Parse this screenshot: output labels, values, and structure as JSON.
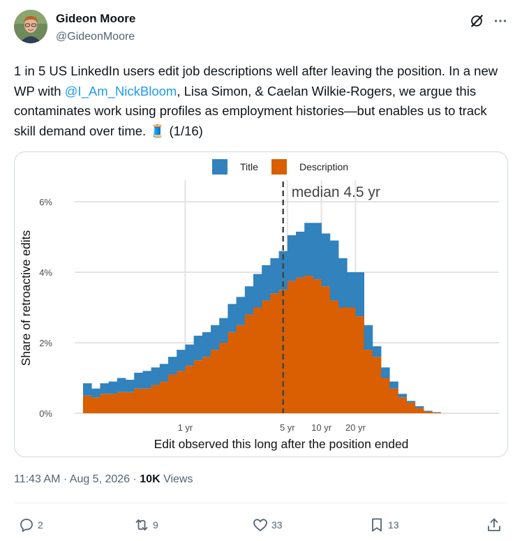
{
  "author": {
    "name": "Gideon Moore",
    "handle": "@GideonMoore",
    "avatar_icon": "profile-photo"
  },
  "tweet": {
    "text_before": "1 in 5 US LinkedIn users edit job descriptions well after leaving the position. In a new WP with ",
    "mention": "@I_Am_NickBloom",
    "text_after": ", Lisa Simon, & Caelan Wilkie-Rogers, we argue this contaminates work using profiles as employment histories—but enables us to track skill demand over time. 🧵 (1/16)"
  },
  "chart_data": {
    "type": "bar",
    "stacked": true,
    "xlabel": "Edit observed this long after the position ended",
    "ylabel": "Share of retroactive edits",
    "ylim": [
      0,
      6.5
    ],
    "y_ticks": [
      "0%",
      "2%",
      "4%",
      "6%"
    ],
    "y_tick_values": [
      0,
      2,
      4,
      6
    ],
    "x_ticks": [
      "1 yr",
      "5 yr",
      "10 yr",
      "20 yr"
    ],
    "x_tick_bins": [
      12,
      24,
      28,
      32
    ],
    "legend_position": "top",
    "annotation": "median 4.5 yr",
    "median_bin": 23.5,
    "series": [
      {
        "name": "Description",
        "color": "#d95f02",
        "values": [
          0.5,
          0.45,
          0.55,
          0.55,
          0.6,
          0.6,
          0.7,
          0.7,
          0.8,
          0.9,
          1.1,
          1.2,
          1.35,
          1.5,
          1.6,
          1.8,
          2.0,
          2.3,
          2.5,
          2.8,
          3.0,
          3.2,
          3.4,
          3.5,
          3.75,
          3.85,
          3.9,
          3.8,
          3.6,
          3.2,
          3.0,
          3.0,
          2.75,
          1.8,
          1.6,
          1.0,
          0.7,
          0.45,
          0.3,
          0.15,
          0.05,
          0.02
        ]
      },
      {
        "name": "Title",
        "color": "#3182bd",
        "values": [
          0.35,
          0.25,
          0.3,
          0.35,
          0.4,
          0.35,
          0.45,
          0.5,
          0.5,
          0.5,
          0.5,
          0.6,
          0.6,
          0.7,
          0.7,
          0.7,
          0.7,
          0.8,
          0.8,
          0.8,
          0.95,
          1.0,
          1.0,
          1.1,
          1.3,
          1.3,
          1.5,
          1.6,
          1.5,
          1.7,
          1.4,
          1.0,
          1.25,
          0.7,
          0.3,
          0.3,
          0.2,
          0.1,
          0.05,
          0.05,
          0.02,
          0.01
        ]
      }
    ]
  },
  "meta": {
    "time": "11:43 AM",
    "separator1": " · ",
    "date": "Aug 5, 2026",
    "separator2": " · ",
    "views_count": "10K",
    "views_label": " Views"
  },
  "actions": {
    "replies": "2",
    "reposts": "9",
    "likes": "33",
    "bookmarks": "13"
  }
}
